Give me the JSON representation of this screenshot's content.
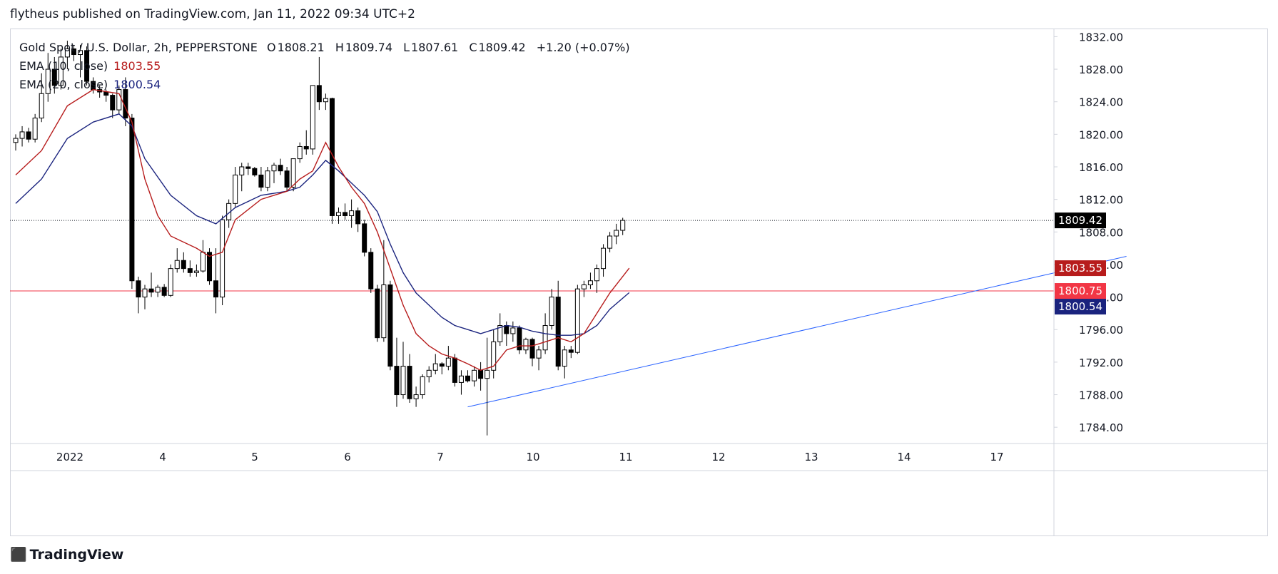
{
  "publisher_line": "flytheus published on TradingView.com, Jan 11, 2022 09:34 UTC+2",
  "legend": {
    "symbol": "Gold Spot / U.S. Dollar, 2h, PEPPERSTONE",
    "open_label": "O",
    "open": "1808.21",
    "high_label": "H",
    "high": "1809.74",
    "low_label": "L",
    "low": "1807.61",
    "close_label": "C",
    "close": "1809.42",
    "change": "+1.20 (+0.07%)",
    "ema10_label": "EMA (10, close)",
    "ema10_value": "1803.55",
    "ema20_label": "EMA (20, close)",
    "ema20_value": "1800.54"
  },
  "brand": {
    "logo_icon": "tradingview-logo-icon",
    "name": "TradingView"
  },
  "colors": {
    "ema10": "#b71c1c",
    "ema20": "#1a237e",
    "support_line": "#f23645",
    "trendline": "#2962ff",
    "last_price_badge": "#000000"
  },
  "chart_data": {
    "type": "candlestick",
    "x_tick_labels": [
      "2022",
      "4",
      "5",
      "6",
      "7",
      "10",
      "11",
      "12",
      "13",
      "14",
      "17"
    ],
    "y_tick_labels": [
      "1832.00",
      "1828.00",
      "1824.00",
      "1820.00",
      "1816.00",
      "1812.00",
      "1808.00",
      "1804.00",
      "1800.00",
      "1796.00",
      "1792.00",
      "1788.00",
      "1784.00"
    ],
    "ylim": [
      1782.0,
      1833.0
    ],
    "candles": [
      {
        "o": 1819.0,
        "h": 1820.0,
        "l": 1818.0,
        "c": 1819.5
      },
      {
        "o": 1819.5,
        "h": 1821.0,
        "l": 1818.5,
        "c": 1820.3
      },
      {
        "o": 1820.3,
        "h": 1820.8,
        "l": 1819.0,
        "c": 1819.4
      },
      {
        "o": 1819.4,
        "h": 1822.5,
        "l": 1819.0,
        "c": 1822.0
      },
      {
        "o": 1822.0,
        "h": 1827.5,
        "l": 1821.5,
        "c": 1825.0
      },
      {
        "o": 1825.0,
        "h": 1830.0,
        "l": 1824.0,
        "c": 1828.0
      },
      {
        "o": 1828.0,
        "h": 1829.5,
        "l": 1825.0,
        "c": 1826.0
      },
      {
        "o": 1826.0,
        "h": 1830.5,
        "l": 1825.5,
        "c": 1829.5
      },
      {
        "o": 1829.5,
        "h": 1831.5,
        "l": 1828.0,
        "c": 1830.5
      },
      {
        "o": 1830.5,
        "h": 1831.0,
        "l": 1829.0,
        "c": 1829.8
      },
      {
        "o": 1829.8,
        "h": 1831.0,
        "l": 1827.0,
        "c": 1830.3
      },
      {
        "o": 1830.3,
        "h": 1830.8,
        "l": 1826.0,
        "c": 1826.5
      },
      {
        "o": 1826.5,
        "h": 1827.0,
        "l": 1825.0,
        "c": 1825.5
      },
      {
        "o": 1825.5,
        "h": 1826.0,
        "l": 1824.5,
        "c": 1825.2
      },
      {
        "o": 1825.2,
        "h": 1825.5,
        "l": 1824.0,
        "c": 1824.8
      },
      {
        "o": 1824.8,
        "h": 1825.0,
        "l": 1822.0,
        "c": 1823.0
      },
      {
        "o": 1823.0,
        "h": 1826.0,
        "l": 1822.5,
        "c": 1825.5
      },
      {
        "o": 1825.5,
        "h": 1827.0,
        "l": 1821.0,
        "c": 1822.0
      },
      {
        "o": 1822.0,
        "h": 1822.5,
        "l": 1801.0,
        "c": 1802.0
      },
      {
        "o": 1802.0,
        "h": 1802.5,
        "l": 1798.0,
        "c": 1800.0
      },
      {
        "o": 1800.0,
        "h": 1801.5,
        "l": 1798.5,
        "c": 1801.0
      },
      {
        "o": 1801.0,
        "h": 1803.0,
        "l": 1800.0,
        "c": 1800.6
      },
      {
        "o": 1800.6,
        "h": 1801.5,
        "l": 1800.0,
        "c": 1801.2
      },
      {
        "o": 1801.2,
        "h": 1801.6,
        "l": 1800.0,
        "c": 1800.2
      },
      {
        "o": 1800.2,
        "h": 1804.0,
        "l": 1800.0,
        "c": 1803.5
      },
      {
        "o": 1803.5,
        "h": 1806.0,
        "l": 1803.0,
        "c": 1804.5
      },
      {
        "o": 1804.5,
        "h": 1805.5,
        "l": 1803.0,
        "c": 1803.5
      },
      {
        "o": 1803.5,
        "h": 1804.5,
        "l": 1802.5,
        "c": 1803.0
      },
      {
        "o": 1803.0,
        "h": 1804.0,
        "l": 1802.5,
        "c": 1803.2
      },
      {
        "o": 1803.2,
        "h": 1807.0,
        "l": 1803.0,
        "c": 1805.5
      },
      {
        "o": 1805.5,
        "h": 1806.0,
        "l": 1801.5,
        "c": 1802.0
      },
      {
        "o": 1802.0,
        "h": 1806.0,
        "l": 1798.0,
        "c": 1800.0
      },
      {
        "o": 1800.0,
        "h": 1810.0,
        "l": 1799.0,
        "c": 1809.5
      },
      {
        "o": 1809.5,
        "h": 1812.0,
        "l": 1808.5,
        "c": 1811.5
      },
      {
        "o": 1811.5,
        "h": 1816.0,
        "l": 1811.0,
        "c": 1815.0
      },
      {
        "o": 1815.0,
        "h": 1816.5,
        "l": 1813.0,
        "c": 1816.0
      },
      {
        "o": 1816.0,
        "h": 1816.5,
        "l": 1815.0,
        "c": 1815.8
      },
      {
        "o": 1815.8,
        "h": 1816.0,
        "l": 1814.8,
        "c": 1815.0
      },
      {
        "o": 1815.0,
        "h": 1816.0,
        "l": 1813.0,
        "c": 1813.5
      },
      {
        "o": 1813.5,
        "h": 1816.0,
        "l": 1813.0,
        "c": 1815.5
      },
      {
        "o": 1815.5,
        "h": 1816.5,
        "l": 1814.0,
        "c": 1816.2
      },
      {
        "o": 1816.2,
        "h": 1817.0,
        "l": 1815.0,
        "c": 1815.5
      },
      {
        "o": 1815.5,
        "h": 1816.0,
        "l": 1813.0,
        "c": 1813.5
      },
      {
        "o": 1813.5,
        "h": 1817.0,
        "l": 1813.0,
        "c": 1817.0
      },
      {
        "o": 1817.0,
        "h": 1819.0,
        "l": 1816.5,
        "c": 1818.5
      },
      {
        "o": 1818.5,
        "h": 1820.5,
        "l": 1817.5,
        "c": 1818.2
      },
      {
        "o": 1818.2,
        "h": 1826.0,
        "l": 1817.5,
        "c": 1826.0
      },
      {
        "o": 1826.0,
        "h": 1829.5,
        "l": 1823.0,
        "c": 1824.0
      },
      {
        "o": 1824.0,
        "h": 1825.0,
        "l": 1823.0,
        "c": 1824.4
      },
      {
        "o": 1824.4,
        "h": 1824.5,
        "l": 1809.0,
        "c": 1810.0
      },
      {
        "o": 1810.0,
        "h": 1811.0,
        "l": 1809.0,
        "c": 1810.4
      },
      {
        "o": 1810.4,
        "h": 1811.5,
        "l": 1809.5,
        "c": 1810.0
      },
      {
        "o": 1810.0,
        "h": 1812.0,
        "l": 1808.5,
        "c": 1810.6
      },
      {
        "o": 1810.6,
        "h": 1811.0,
        "l": 1808.0,
        "c": 1809.0
      },
      {
        "o": 1809.0,
        "h": 1809.5,
        "l": 1805.0,
        "c": 1805.5
      },
      {
        "o": 1805.5,
        "h": 1806.0,
        "l": 1800.5,
        "c": 1801.0
      },
      {
        "o": 1801.0,
        "h": 1801.5,
        "l": 1794.5,
        "c": 1795.0
      },
      {
        "o": 1795.0,
        "h": 1807.0,
        "l": 1794.5,
        "c": 1801.5
      },
      {
        "o": 1801.5,
        "h": 1802.0,
        "l": 1791.0,
        "c": 1791.5
      },
      {
        "o": 1791.5,
        "h": 1795.0,
        "l": 1786.5,
        "c": 1788.0
      },
      {
        "o": 1788.0,
        "h": 1794.5,
        "l": 1787.5,
        "c": 1791.5
      },
      {
        "o": 1791.5,
        "h": 1793.0,
        "l": 1787.0,
        "c": 1787.5
      },
      {
        "o": 1787.5,
        "h": 1789.0,
        "l": 1786.5,
        "c": 1788.0
      },
      {
        "o": 1788.0,
        "h": 1790.5,
        "l": 1787.5,
        "c": 1790.2
      },
      {
        "o": 1790.2,
        "h": 1791.5,
        "l": 1789.5,
        "c": 1791.0
      },
      {
        "o": 1791.0,
        "h": 1793.0,
        "l": 1790.5,
        "c": 1791.8
      },
      {
        "o": 1791.8,
        "h": 1792.0,
        "l": 1790.5,
        "c": 1791.5
      },
      {
        "o": 1791.5,
        "h": 1794.0,
        "l": 1791.0,
        "c": 1792.5
      },
      {
        "o": 1792.5,
        "h": 1793.0,
        "l": 1789.0,
        "c": 1789.5
      },
      {
        "o": 1789.5,
        "h": 1791.0,
        "l": 1788.0,
        "c": 1790.3
      },
      {
        "o": 1790.3,
        "h": 1791.0,
        "l": 1789.5,
        "c": 1789.7
      },
      {
        "o": 1789.7,
        "h": 1791.5,
        "l": 1789.0,
        "c": 1791.0
      },
      {
        "o": 1791.0,
        "h": 1792.0,
        "l": 1788.5,
        "c": 1790.0
      },
      {
        "o": 1790.0,
        "h": 1795.0,
        "l": 1783.0,
        "c": 1791.0
      },
      {
        "o": 1791.0,
        "h": 1796.0,
        "l": 1790.0,
        "c": 1794.5
      },
      {
        "o": 1794.5,
        "h": 1798.0,
        "l": 1794.0,
        "c": 1796.5
      },
      {
        "o": 1796.5,
        "h": 1797.0,
        "l": 1794.0,
        "c": 1795.5
      },
      {
        "o": 1795.5,
        "h": 1797.0,
        "l": 1794.5,
        "c": 1796.2
      },
      {
        "o": 1796.2,
        "h": 1796.5,
        "l": 1793.0,
        "c": 1793.5
      },
      {
        "o": 1793.5,
        "h": 1795.0,
        "l": 1793.0,
        "c": 1794.8
      },
      {
        "o": 1794.8,
        "h": 1795.0,
        "l": 1791.5,
        "c": 1792.5
      },
      {
        "o": 1792.5,
        "h": 1794.0,
        "l": 1791.0,
        "c": 1793.5
      },
      {
        "o": 1793.5,
        "h": 1798.0,
        "l": 1793.0,
        "c": 1796.5
      },
      {
        "o": 1796.5,
        "h": 1801.0,
        "l": 1796.0,
        "c": 1800.0
      },
      {
        "o": 1800.0,
        "h": 1802.0,
        "l": 1791.0,
        "c": 1791.5
      },
      {
        "o": 1791.5,
        "h": 1794.0,
        "l": 1790.0,
        "c": 1793.5
      },
      {
        "o": 1793.5,
        "h": 1794.0,
        "l": 1792.5,
        "c": 1793.2
      },
      {
        "o": 1793.2,
        "h": 1801.5,
        "l": 1793.0,
        "c": 1801.0
      },
      {
        "o": 1801.0,
        "h": 1802.0,
        "l": 1800.0,
        "c": 1801.5
      },
      {
        "o": 1801.5,
        "h": 1803.0,
        "l": 1801.0,
        "c": 1802.0
      },
      {
        "o": 1802.0,
        "h": 1804.0,
        "l": 1800.5,
        "c": 1803.5
      },
      {
        "o": 1803.5,
        "h": 1806.5,
        "l": 1802.5,
        "c": 1806.0
      },
      {
        "o": 1806.0,
        "h": 1808.0,
        "l": 1805.5,
        "c": 1807.5
      },
      {
        "o": 1807.5,
        "h": 1809.0,
        "l": 1806.5,
        "c": 1808.2
      },
      {
        "o": 1808.2,
        "h": 1809.74,
        "l": 1807.61,
        "c": 1809.42
      }
    ],
    "ema10": [
      [
        0,
        1815.0
      ],
      [
        4,
        1818.0
      ],
      [
        8,
        1823.5
      ],
      [
        12,
        1825.5
      ],
      [
        16,
        1825.0
      ],
      [
        18,
        1821.5
      ],
      [
        20,
        1814.5
      ],
      [
        22,
        1810.0
      ],
      [
        24,
        1807.5
      ],
      [
        28,
        1806.0
      ],
      [
        30,
        1805.0
      ],
      [
        32,
        1805.5
      ],
      [
        34,
        1809.5
      ],
      [
        38,
        1812.0
      ],
      [
        42,
        1813.0
      ],
      [
        44,
        1814.5
      ],
      [
        46,
        1815.5
      ],
      [
        48,
        1819.0
      ],
      [
        50,
        1816.0
      ],
      [
        52,
        1813.5
      ],
      [
        54,
        1811.5
      ],
      [
        56,
        1808.0
      ],
      [
        58,
        1803.5
      ],
      [
        60,
        1799.0
      ],
      [
        62,
        1795.5
      ],
      [
        64,
        1794.0
      ],
      [
        66,
        1793.0
      ],
      [
        68,
        1792.5
      ],
      [
        70,
        1791.8
      ],
      [
        72,
        1791.0
      ],
      [
        74,
        1791.5
      ],
      [
        76,
        1793.5
      ],
      [
        78,
        1794.0
      ],
      [
        80,
        1794.0
      ],
      [
        82,
        1794.5
      ],
      [
        84,
        1795.0
      ],
      [
        86,
        1794.5
      ],
      [
        88,
        1795.5
      ],
      [
        90,
        1798.0
      ],
      [
        92,
        1800.5
      ],
      [
        95,
        1803.55
      ]
    ],
    "ema20": [
      [
        0,
        1811.5
      ],
      [
        4,
        1814.5
      ],
      [
        8,
        1819.5
      ],
      [
        12,
        1821.5
      ],
      [
        16,
        1822.5
      ],
      [
        18,
        1821.0
      ],
      [
        20,
        1817.0
      ],
      [
        24,
        1812.5
      ],
      [
        28,
        1810.0
      ],
      [
        31,
        1809.0
      ],
      [
        34,
        1811.0
      ],
      [
        38,
        1812.5
      ],
      [
        42,
        1813.0
      ],
      [
        44,
        1813.5
      ],
      [
        46,
        1815.0
      ],
      [
        48,
        1816.8
      ],
      [
        50,
        1815.5
      ],
      [
        52,
        1814.0
      ],
      [
        54,
        1812.5
      ],
      [
        56,
        1810.5
      ],
      [
        58,
        1806.5
      ],
      [
        60,
        1803.0
      ],
      [
        62,
        1800.5
      ],
      [
        64,
        1799.0
      ],
      [
        66,
        1797.5
      ],
      [
        68,
        1796.5
      ],
      [
        70,
        1796.0
      ],
      [
        72,
        1795.5
      ],
      [
        74,
        1796.0
      ],
      [
        76,
        1796.5
      ],
      [
        78,
        1796.3
      ],
      [
        80,
        1795.8
      ],
      [
        82,
        1795.5
      ],
      [
        84,
        1795.3
      ],
      [
        86,
        1795.3
      ],
      [
        88,
        1795.5
      ],
      [
        90,
        1796.5
      ],
      [
        92,
        1798.5
      ],
      [
        95,
        1800.54
      ]
    ],
    "support_level": 1800.75,
    "trendline_start": {
      "bar": 70,
      "price": 1786.5
    },
    "trendline_end": {
      "bar": 172,
      "price": 1805.0
    },
    "last_price": 1809.42,
    "price_labels": [
      {
        "text": "1809.42",
        "price": 1809.42,
        "color": "#000000"
      },
      {
        "text": "1803.55",
        "price": 1803.55,
        "color": "#b71c1c"
      },
      {
        "text": "1800.75",
        "price": 1800.75,
        "color": "#f23645"
      },
      {
        "text": "1800.54",
        "price": 1800.54,
        "color": "#1a237e"
      }
    ]
  }
}
